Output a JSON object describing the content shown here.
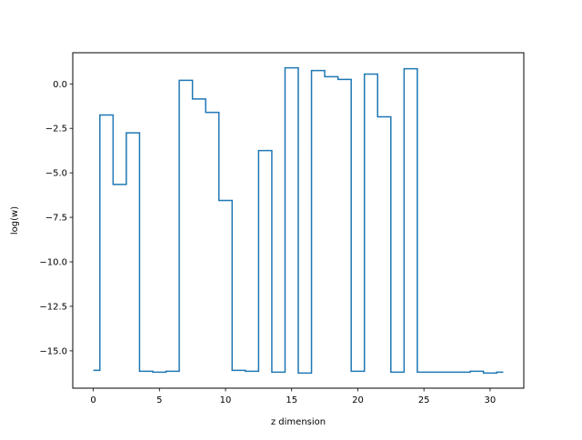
{
  "chart_data": {
    "type": "line",
    "drawstyle": "steps-mid",
    "title": "",
    "xlabel": "z dimension",
    "ylabel": "log(w)",
    "xlim": [
      -1.55,
      32.55
    ],
    "ylim": [
      -17.1,
      1.75
    ],
    "xticks": [
      0,
      5,
      10,
      15,
      20,
      25,
      30
    ],
    "xtick_labels": [
      "0",
      "5",
      "10",
      "15",
      "20",
      "25",
      "30"
    ],
    "yticks": [
      0.0,
      -2.5,
      -5.0,
      -7.5,
      -10.0,
      -12.5,
      -15.0
    ],
    "ytick_labels": [
      "0.0",
      "−2.5",
      "−5.0",
      "−7.5",
      "−10.0",
      "−12.5",
      "−15.0"
    ],
    "grid": false,
    "legend": "none",
    "series": [
      {
        "color": "#1f77b4",
        "x": [
          0,
          1,
          2,
          3,
          4,
          5,
          6,
          7,
          8,
          9,
          10,
          11,
          12,
          13,
          14,
          15,
          16,
          17,
          18,
          19,
          20,
          21,
          22,
          23,
          24,
          25,
          26,
          27,
          28,
          29,
          30,
          31
        ],
        "y": [
          -16.1,
          -1.75,
          -5.65,
          -2.75,
          -16.15,
          -16.2,
          -16.15,
          0.2,
          -0.85,
          -1.6,
          -6.55,
          -16.1,
          -16.15,
          -3.75,
          -16.2,
          0.9,
          -16.25,
          0.75,
          0.4,
          0.25,
          -16.15,
          0.55,
          -1.85,
          -16.2,
          0.85,
          -16.2,
          -16.2,
          -16.2,
          -16.2,
          -16.15,
          -16.25,
          -16.2
        ]
      }
    ]
  }
}
